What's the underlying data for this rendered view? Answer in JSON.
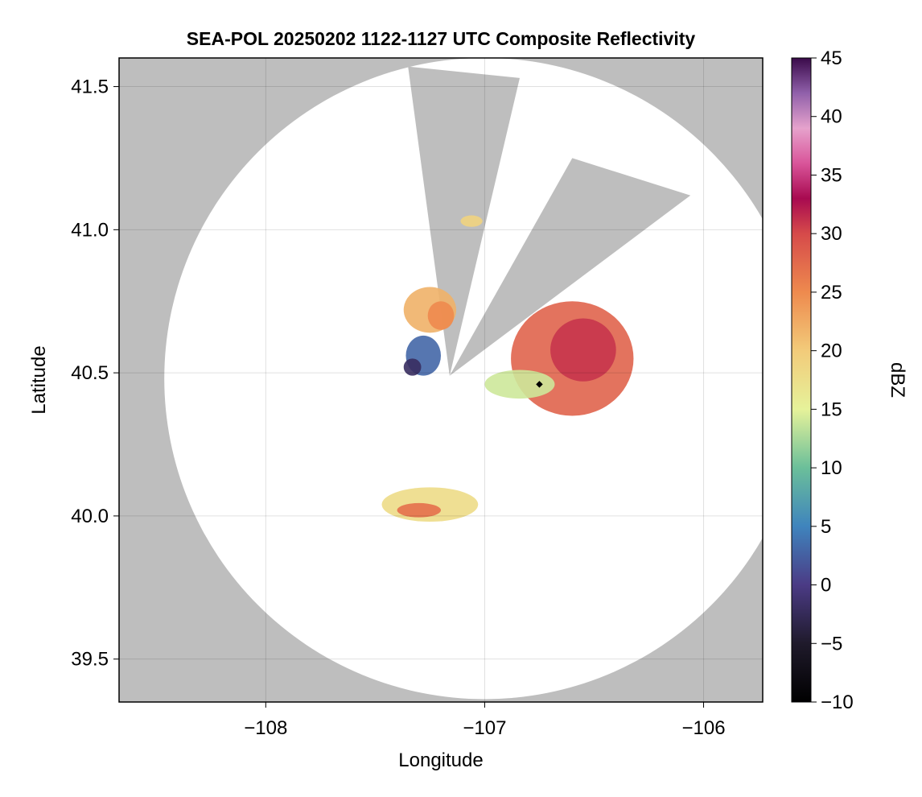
{
  "chart_data": {
    "type": "heatmap",
    "title": "SEA-POL 20250202 1122-1127 UTC Composite Reflectivity",
    "xlabel": "Longitude",
    "ylabel": "Latitude",
    "xlim": [
      -108.67,
      -105.73
    ],
    "ylim": [
      39.35,
      41.6
    ],
    "xticks": [
      -108,
      -107,
      -106
    ],
    "xtick_labels": [
      "−108",
      "−107",
      "−106"
    ],
    "yticks": [
      39.5,
      40.0,
      40.5,
      41.0,
      41.5
    ],
    "ytick_labels": [
      "39.5",
      "40.0",
      "40.5",
      "41.0",
      "41.5"
    ],
    "grid": true,
    "background_color": "#bebebe",
    "radar_site": {
      "lon": -106.75,
      "lat": 40.46
    },
    "coverage": {
      "center_lon": -107.0,
      "center_lat": 40.48,
      "radius_deg_lat": 1.12,
      "blocked_sectors": [
        {
          "from_lon": -107.16,
          "from_lat": 40.49,
          "edge1": [
            -106.84,
            41.53
          ],
          "edge2": [
            -107.35,
            41.57
          ]
        },
        {
          "from_lon": -107.16,
          "from_lat": 40.49,
          "edge1": [
            -106.06,
            41.12
          ],
          "edge2": [
            -106.6,
            41.25
          ]
        }
      ]
    },
    "echoes": [
      {
        "name": "main-cell",
        "lon": -106.6,
        "lat": 40.55,
        "rlon": 0.28,
        "rlat": 0.2,
        "dbz": 28
      },
      {
        "name": "main-cell-core",
        "lon": -106.55,
        "lat": 40.58,
        "rlon": 0.15,
        "rlat": 0.11,
        "dbz": 31
      },
      {
        "name": "south-arm",
        "lon": -106.84,
        "lat": 40.46,
        "rlon": 0.16,
        "rlat": 0.05,
        "dbz": 14
      },
      {
        "name": "north-cell",
        "lon": -107.25,
        "lat": 40.72,
        "rlon": 0.12,
        "rlat": 0.08,
        "dbz": 22
      },
      {
        "name": "north-cell-core",
        "lon": -107.2,
        "lat": 40.7,
        "rlon": 0.06,
        "rlat": 0.05,
        "dbz": 25
      },
      {
        "name": "west-fringe",
        "lon": -107.28,
        "lat": 40.56,
        "rlon": 0.08,
        "rlat": 0.07,
        "dbz": 3
      },
      {
        "name": "far-west-fringe",
        "lon": -107.33,
        "lat": 40.52,
        "rlon": 0.04,
        "rlat": 0.03,
        "dbz": -2
      },
      {
        "name": "northern-spot",
        "lon": -107.06,
        "lat": 41.03,
        "rlon": 0.05,
        "rlat": 0.02,
        "dbz": 19
      },
      {
        "name": "south-cell",
        "lon": -107.25,
        "lat": 40.04,
        "rlon": 0.22,
        "rlat": 0.06,
        "dbz": 18
      },
      {
        "name": "south-cell-core",
        "lon": -107.3,
        "lat": 40.02,
        "rlon": 0.1,
        "rlat": 0.025,
        "dbz": 27
      }
    ],
    "colorbar": {
      "label": "dBZ",
      "min": -10,
      "max": 45,
      "ticks": [
        -10,
        -5,
        0,
        5,
        10,
        15,
        20,
        25,
        30,
        35,
        40,
        45
      ],
      "tick_labels": [
        "−10",
        "−5",
        "0",
        "5",
        "10",
        "15",
        "20",
        "25",
        "30",
        "35",
        "40",
        "45"
      ],
      "colormap": [
        [
          -10,
          "#000000"
        ],
        [
          -5,
          "#1f1a2b"
        ],
        [
          0,
          "#4b3b85"
        ],
        [
          5,
          "#3f84bd"
        ],
        [
          10,
          "#6bbf9a"
        ],
        [
          15,
          "#e6f29a"
        ],
        [
          20,
          "#f2cb7a"
        ],
        [
          25,
          "#ee8a4e"
        ],
        [
          30,
          "#d64a4a"
        ],
        [
          33,
          "#a80a50"
        ],
        [
          36,
          "#d9559a"
        ],
        [
          39,
          "#e6a2cc"
        ],
        [
          42,
          "#9060aa"
        ],
        [
          45,
          "#3a0a4a"
        ]
      ]
    }
  }
}
